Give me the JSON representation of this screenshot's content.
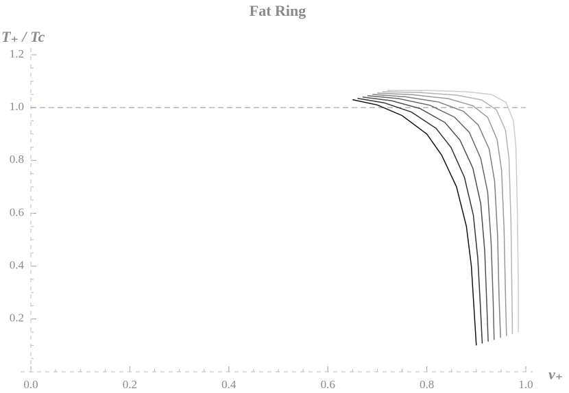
{
  "chart_data": {
    "type": "line",
    "title": "Fat Ring",
    "xlabel": "v₊",
    "ylabel": "T₊ / Tc",
    "xlim": [
      0,
      1
    ],
    "ylim": [
      0,
      1.2
    ],
    "xticks": [
      {
        "value": 0,
        "label": "0.0"
      },
      0.2,
      0.4,
      0.6,
      0.8,
      {
        "value": 1,
        "label": "1.0"
      }
    ],
    "yticks": [
      0.2,
      0.4,
      0.6,
      0.8,
      {
        "value": 1,
        "label": "1.0"
      },
      1.2
    ],
    "hline": 1,
    "hline_color": "#8a8ab8",
    "series": [
      {
        "color": "#111111",
        "x": [
          0.65,
          0.7,
          0.75,
          0.8,
          0.83,
          0.86,
          0.88,
          0.89,
          0.895,
          0.9
        ],
        "values": [
          1.03,
          1.01,
          0.97,
          0.9,
          0.82,
          0.7,
          0.55,
          0.4,
          0.25,
          0.1
        ]
      },
      {
        "color": "#333333",
        "x": [
          0.66,
          0.714,
          0.769,
          0.819,
          0.849,
          0.876,
          0.894,
          0.903,
          0.908,
          0.912
        ],
        "values": [
          1.035,
          1.018,
          0.983,
          0.921,
          0.849,
          0.736,
          0.593,
          0.429,
          0.257,
          0.107
        ]
      },
      {
        "color": "#4d4d4d",
        "x": [
          0.67,
          0.729,
          0.787,
          0.837,
          0.867,
          0.893,
          0.909,
          0.917,
          0.921,
          0.924
        ],
        "values": [
          1.04,
          1.026,
          0.996,
          0.943,
          0.877,
          0.771,
          0.636,
          0.457,
          0.264,
          0.114
        ]
      },
      {
        "color": "#666666",
        "x": [
          0.68,
          0.743,
          0.806,
          0.856,
          0.886,
          0.909,
          0.923,
          0.93,
          0.934,
          0.936
        ],
        "values": [
          1.045,
          1.034,
          1.009,
          0.964,
          0.906,
          0.807,
          0.679,
          0.486,
          0.271,
          0.121
        ]
      },
      {
        "color": "#808080",
        "x": [
          0.69,
          0.757,
          0.824,
          0.874,
          0.904,
          0.926,
          0.937,
          0.943,
          0.946,
          0.949
        ],
        "values": [
          1.05,
          1.041,
          1.021,
          0.986,
          0.934,
          0.843,
          0.721,
          0.514,
          0.279,
          0.129
        ]
      },
      {
        "color": "#999999",
        "x": [
          0.7,
          0.771,
          0.843,
          0.893,
          0.923,
          0.942,
          0.951,
          0.956,
          0.959,
          0.961
        ],
        "values": [
          1.055,
          1.049,
          1.034,
          1.007,
          0.963,
          0.879,
          0.764,
          0.543,
          0.286,
          0.136
        ]
      },
      {
        "color": "#b3b3b3",
        "x": [
          0.71,
          0.786,
          0.861,
          0.911,
          0.941,
          0.959,
          0.966,
          0.97,
          0.972,
          0.973
        ],
        "values": [
          1.06,
          1.057,
          1.047,
          1.029,
          0.991,
          0.914,
          0.807,
          0.571,
          0.293,
          0.143
        ]
      },
      {
        "color": "#cccccc",
        "x": [
          0.72,
          0.8,
          0.88,
          0.93,
          0.96,
          0.975,
          0.98,
          0.983,
          0.985,
          0.985
        ],
        "values": [
          1.065,
          1.065,
          1.06,
          1.05,
          1.02,
          0.95,
          0.85,
          0.6,
          0.3,
          0.15
        ]
      }
    ]
  }
}
